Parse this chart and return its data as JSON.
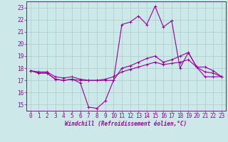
{
  "xlabel": "Windchill (Refroidissement éolien,°C)",
  "bg_color": "#cce8e8",
  "line_color": "#990099",
  "grid_color": "#aacccc",
  "spine_color": "#990099",
  "xlim": [
    -0.5,
    23.5
  ],
  "ylim": [
    14.5,
    23.5
  ],
  "xticks": [
    0,
    1,
    2,
    3,
    4,
    5,
    6,
    7,
    8,
    9,
    10,
    11,
    12,
    13,
    14,
    15,
    16,
    17,
    18,
    19,
    20,
    21,
    22,
    23
  ],
  "yticks": [
    15,
    16,
    17,
    18,
    19,
    20,
    21,
    22,
    23
  ],
  "line1": [
    17.8,
    17.6,
    17.6,
    17.1,
    17.0,
    17.1,
    16.8,
    14.8,
    14.7,
    15.3,
    17.0,
    21.6,
    21.8,
    22.3,
    21.6,
    23.1,
    21.4,
    21.9,
    18.0,
    19.3,
    18.1,
    18.1,
    17.8,
    17.3
  ],
  "line2": [
    17.8,
    17.6,
    17.6,
    17.1,
    17.0,
    17.1,
    17.0,
    17.0,
    17.0,
    17.0,
    17.0,
    18.0,
    18.2,
    18.5,
    18.8,
    19.0,
    18.5,
    18.7,
    19.0,
    19.3,
    18.1,
    17.3,
    17.3,
    17.3
  ],
  "line3": [
    17.8,
    17.7,
    17.7,
    17.3,
    17.2,
    17.3,
    17.1,
    17.0,
    17.0,
    17.1,
    17.3,
    17.7,
    17.9,
    18.1,
    18.3,
    18.5,
    18.3,
    18.4,
    18.5,
    18.7,
    18.1,
    17.7,
    17.6,
    17.3
  ],
  "tick_fontsize": 5.5,
  "xlabel_fontsize": 5.5,
  "linewidth": 0.8,
  "markersize": 2.5
}
